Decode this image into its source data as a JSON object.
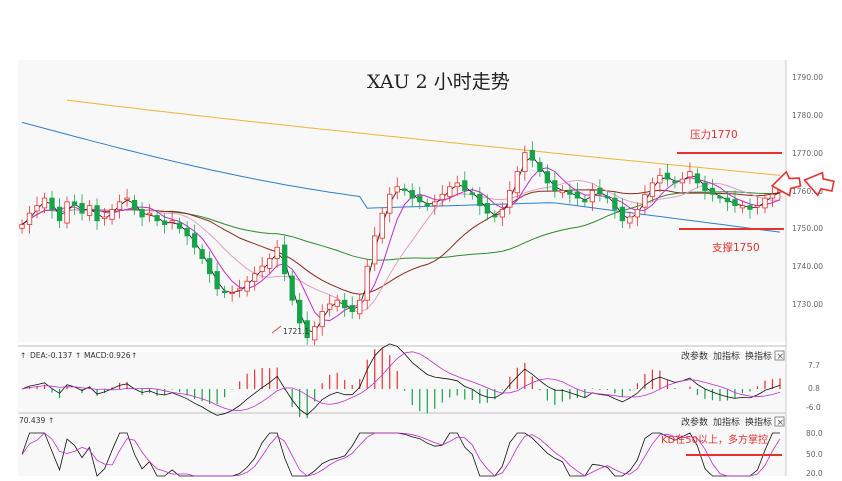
{
  "colors": {
    "up": "#e8312f",
    "down": "#17a34a",
    "ma_gold": "#f0b23c",
    "ma_blue": "#2f7fc9",
    "ma_green": "#2e8b2e",
    "ma_brown": "#8b2a1d",
    "ma_magenta": "#c42bd1",
    "ma_black": "#111111",
    "annotation": "#e8312f"
  },
  "main_panel": {
    "title": "XAU 2 小时走势",
    "price_axis_labels": [
      "1790.00",
      "1780.00",
      "1770.00",
      "1760.00",
      "1750.00",
      "1740.00",
      "1730.00"
    ],
    "resistance_label": "压力1770",
    "support_label": "支撑1750",
    "low_label": "1721.1"
  },
  "macd_panel": {
    "dea_label": "DEA:-0.137",
    "macd_label": "MACD:0.926",
    "axis_labels": [
      "7.7",
      "0.8",
      "-6.0"
    ]
  },
  "kd_panel": {
    "value_label": "70.439",
    "axis_labels": [
      "80.0",
      "50.0",
      "20.0"
    ],
    "note": "KD在50以上，多方掌控"
  },
  "toolbar": {
    "modify_params": "改参数",
    "add_indicator": "加指标",
    "switch_indicator": "换指标",
    "close": "×"
  },
  "chart_data": {
    "type": "line",
    "instrument": "XAU",
    "timeframe": "2 小时",
    "ylim": [
      1718,
      1793
    ],
    "close": [
      1751,
      1754,
      1756,
      1758,
      1755,
      1752,
      1757,
      1756,
      1754,
      1756,
      1752,
      1753,
      1755,
      1757,
      1758,
      1755,
      1753,
      1754,
      1752,
      1751,
      1752,
      1750,
      1748,
      1745,
      1742,
      1738,
      1734,
      1733,
      1733,
      1734,
      1736,
      1738,
      1740,
      1742,
      1745,
      1738,
      1731,
      1725,
      1721.1,
      1724,
      1728,
      1730,
      1731,
      1729,
      1728,
      1731,
      1740,
      1748,
      1754,
      1759,
      1761,
      1760,
      1758,
      1757,
      1756,
      1757,
      1759,
      1761,
      1762,
      1760,
      1759,
      1756,
      1754,
      1753,
      1755,
      1760,
      1765,
      1770,
      1768,
      1765,
      1762,
      1760,
      1760,
      1759,
      1758,
      1757,
      1760,
      1759,
      1758,
      1755,
      1752,
      1753,
      1755,
      1759,
      1762,
      1764,
      1763,
      1762,
      1763,
      1765,
      1762,
      1760,
      1759,
      1758,
      1757,
      1756,
      1756,
      1755,
      1756,
      1758,
      1759,
      1760
    ],
    "ma_gold": {
      "start": 1785.6,
      "end": 1764.0
    },
    "ma_blue": {
      "start": 1778.0,
      "end": 1752.0
    },
    "support": 1750,
    "resistance": 1770,
    "low_point": 1721.1,
    "macd": {
      "dea": -0.137,
      "macd": 0.926,
      "ylim": [
        -6.0,
        7.7
      ]
    },
    "kd": {
      "k": 70.439,
      "ylim": [
        20.0,
        80.0
      ]
    }
  }
}
